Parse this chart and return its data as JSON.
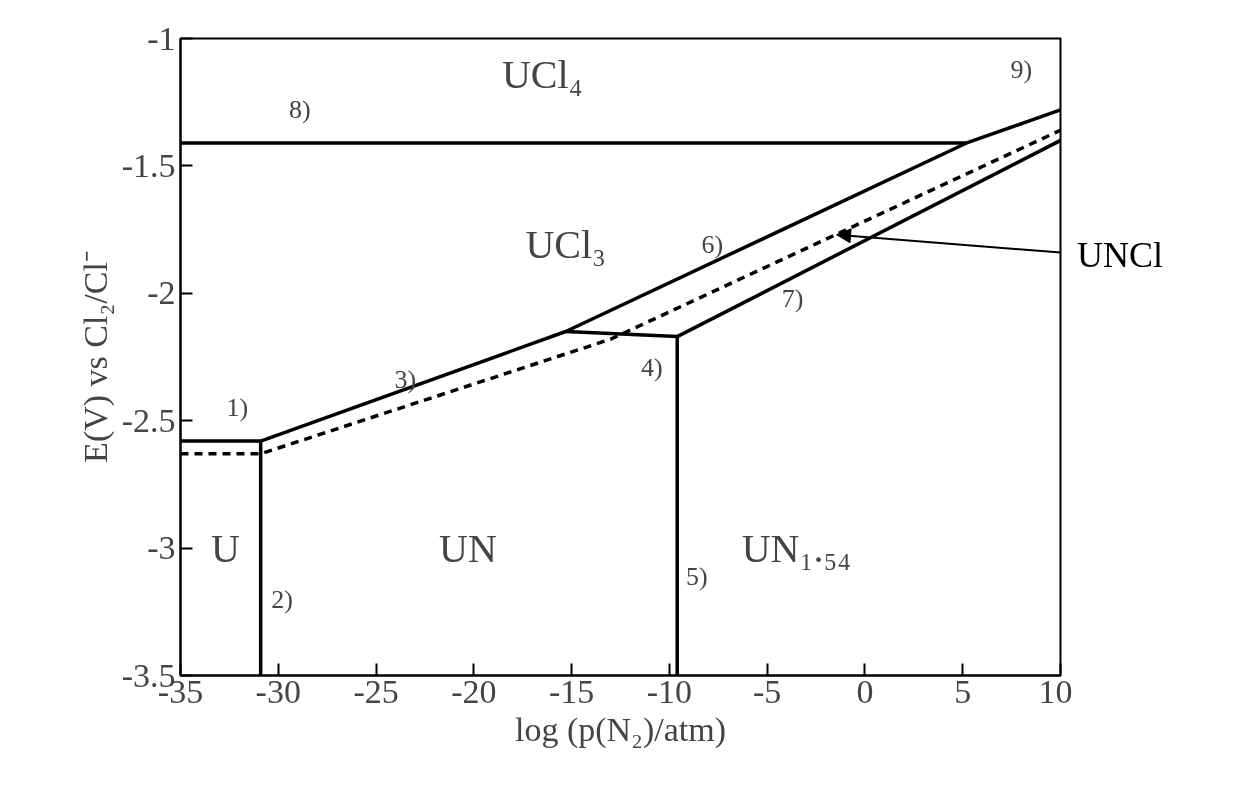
{
  "chart_data": {
    "type": "line",
    "xlabel": "log (p(N₂)/atm)",
    "ylabel": "E(V) vs Cl₂/Cl⁻",
    "xlim": [
      -35,
      10
    ],
    "ylim": [
      -3.5,
      -1
    ],
    "xticks": [
      -35,
      -30,
      -25,
      -20,
      -15,
      -10,
      -5,
      0,
      5,
      10
    ],
    "yticks": [
      -3.5,
      -3,
      -2.5,
      -2,
      -1.5,
      -1
    ],
    "grid": false,
    "marker": "none",
    "series": [
      {
        "color": "#000000",
        "line_style": "solid",
        "x": [
          -35,
          -30.9,
          -15.3,
          5.2,
          10
        ],
        "values": [
          -2.58,
          -2.58,
          -2.15,
          -1.41,
          -1.28
        ]
      },
      {
        "color": "#000000",
        "line_style": "solid",
        "x": [
          -30.9,
          -30.9
        ],
        "values": [
          -2.58,
          -3.5
        ]
      },
      {
        "color": "#000000",
        "line_style": "solid",
        "x": [
          -15.3,
          -9.6,
          -9.6
        ],
        "values": [
          -2.15,
          -2.17,
          -3.5
        ]
      },
      {
        "color": "#000000",
        "line_style": "solid",
        "x": [
          -9.6,
          10
        ],
        "values": [
          -2.17,
          -1.4
        ]
      },
      {
        "color": "#000000",
        "line_style": "solid",
        "x": [
          -35,
          5.2
        ],
        "values": [
          -1.41,
          -1.41
        ]
      },
      {
        "color": "#000000",
        "line_style": "dashed",
        "x": [
          -35,
          -30.9,
          -13,
          10
        ],
        "values": [
          -2.63,
          -2.63,
          -2.18,
          -1.36
        ]
      }
    ],
    "annotations": [
      "1)",
      "2)",
      "3)",
      "4)",
      "5)",
      "6)",
      "7)",
      "8)",
      "9)",
      "UCl₄",
      "UCl₃",
      "U",
      "UN",
      "UN₁.₅₄",
      {
        "text": "UNCl",
        "x": -1.45,
        "y": -1.77
      }
    ]
  }
}
